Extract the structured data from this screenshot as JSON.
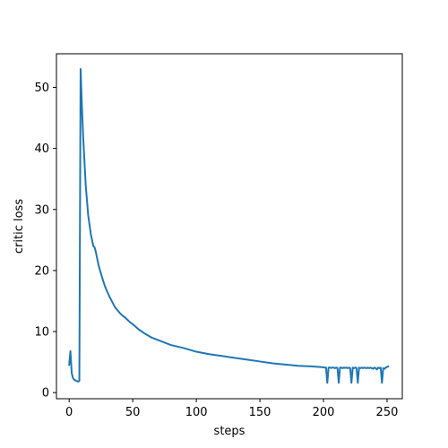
{
  "chart_data": {
    "type": "line",
    "title": "",
    "xlabel": "steps",
    "ylabel": "critic loss",
    "xlim": [
      -10,
      262
    ],
    "ylim": [
      -1,
      55.5
    ],
    "xticks": [
      0,
      50,
      100,
      150,
      200,
      250
    ],
    "yticks": [
      0,
      10,
      20,
      30,
      40,
      50
    ],
    "grid": false,
    "legend": "none",
    "series": [
      {
        "color": "#1f77b4",
        "x": [
          0,
          1,
          2,
          3,
          4,
          5,
          6,
          7,
          8,
          9,
          10,
          11,
          12,
          13,
          14,
          15,
          16,
          17,
          18,
          19,
          20,
          21,
          22,
          23,
          24,
          25,
          26,
          28,
          30,
          32,
          34,
          36,
          38,
          40,
          42,
          44,
          46,
          48,
          50,
          55,
          60,
          65,
          70,
          75,
          80,
          90,
          100,
          110,
          120,
          130,
          140,
          150,
          160,
          170,
          180,
          190,
          200,
          201,
          202,
          203,
          204,
          205,
          206,
          207,
          208,
          209,
          210,
          211,
          212,
          213,
          214,
          215,
          216,
          217,
          218,
          219,
          220,
          221,
          222,
          223,
          224,
          225,
          226,
          227,
          228,
          229,
          230,
          231,
          232,
          233,
          234,
          235,
          236,
          237,
          238,
          239,
          240,
          241,
          242,
          243,
          244,
          245,
          246,
          247,
          248,
          249,
          250,
          251
        ],
        "y": [
          4.5,
          6.8,
          3.2,
          2.4,
          2.1,
          2.0,
          1.9,
          1.8,
          1.9,
          53.0,
          47.0,
          42.0,
          38.0,
          34.0,
          31.5,
          29.0,
          27.5,
          26.0,
          25.0,
          24.0,
          23.8,
          23.0,
          22.0,
          21.0,
          20.2,
          19.5,
          18.8,
          17.5,
          16.5,
          15.6,
          14.8,
          14.0,
          13.5,
          13.0,
          12.6,
          12.3,
          11.9,
          11.5,
          11.2,
          10.3,
          9.6,
          9.0,
          8.6,
          8.2,
          7.8,
          7.3,
          6.7,
          6.3,
          6.0,
          5.7,
          5.4,
          5.1,
          4.8,
          4.6,
          4.4,
          4.3,
          4.15,
          4.1,
          4.1,
          1.6,
          4.1,
          4.1,
          4.05,
          4.1,
          4.1,
          4.0,
          4.1,
          4.05,
          1.6,
          4.1,
          4.1,
          4.0,
          4.1,
          4.05,
          4.1,
          4.0,
          4.1,
          4.0,
          1.6,
          4.1,
          4.0,
          4.1,
          4.05,
          1.6,
          4.1,
          4.0,
          4.1,
          4.0,
          4.1,
          4.05,
          4.0,
          4.1,
          4.0,
          4.1,
          4.0,
          3.9,
          4.1,
          4.0,
          3.8,
          4.1,
          4.0,
          4.1,
          1.6,
          4.0,
          3.9,
          4.1,
          4.2,
          4.3
        ]
      }
    ]
  }
}
